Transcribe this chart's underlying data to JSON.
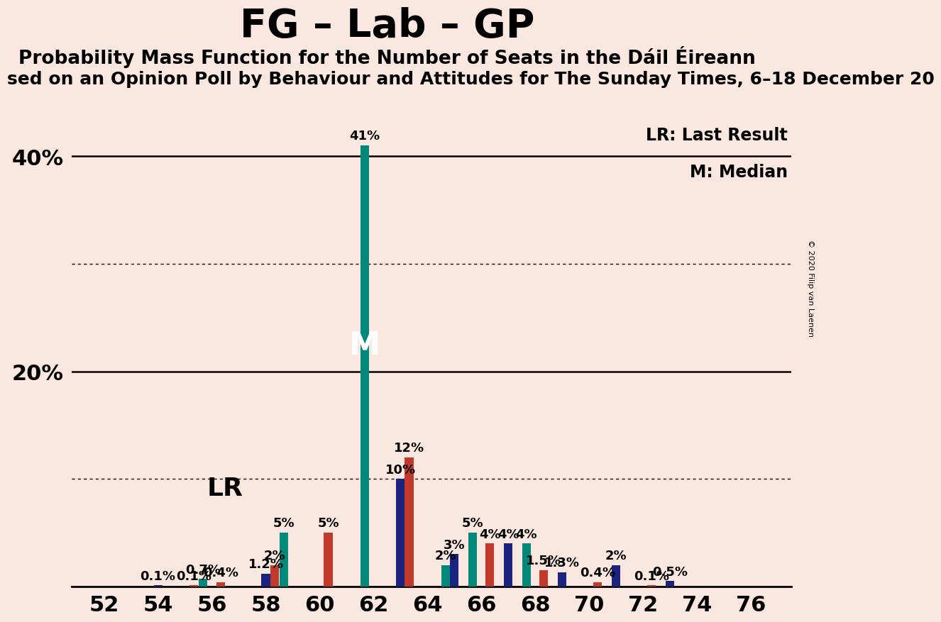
{
  "title": "FG – Lab – GP",
  "subtitle": "Probability Mass Function for the Number of Seats in the Dáil Éireann",
  "subtitle2": "sed on an Opinion Poll by Behaviour and Attitudes for The Sunday Times, 6–18 December 20",
  "copyright": "© 2020 Filip van Laenen",
  "background_color": "#FAE8E0",
  "seats": [
    52,
    53,
    54,
    55,
    56,
    57,
    58,
    59,
    60,
    61,
    62,
    63,
    64,
    65,
    66,
    67,
    68,
    69,
    70,
    71,
    72,
    73,
    74,
    75,
    76
  ],
  "teal_values": [
    0.0,
    0.0,
    0.0,
    0.0,
    0.7,
    0.0,
    0.0,
    5.0,
    0.0,
    0.0,
    41.0,
    0.0,
    0.0,
    2.0,
    5.0,
    0.0,
    4.0,
    0.0,
    0.0,
    0.0,
    0.0,
    0.0,
    0.0,
    0.0,
    0.0
  ],
  "navy_values": [
    0.0,
    0.0,
    0.1,
    0.0,
    0.0,
    0.0,
    1.2,
    0.0,
    0.0,
    0.0,
    0.0,
    10.0,
    0.0,
    3.0,
    0.0,
    4.0,
    0.0,
    1.3,
    0.0,
    2.0,
    0.0,
    0.5,
    0.0,
    0.0,
    0.0
  ],
  "red_values": [
    0.0,
    0.0,
    0.0,
    0.1,
    0.4,
    0.0,
    2.0,
    0.0,
    5.0,
    0.0,
    0.0,
    12.0,
    0.0,
    0.0,
    4.0,
    0.0,
    1.5,
    0.0,
    0.4,
    0.0,
    0.1,
    0.0,
    0.0,
    0.0,
    0.0
  ],
  "teal_color": "#00897B",
  "navy_color": "#1a237e",
  "red_color": "#c0392b",
  "yticks": [
    20,
    40
  ],
  "dotted_yticks": [
    10,
    30
  ],
  "ylim": [
    0,
    46
  ],
  "median_seat": 62,
  "lr_seat": 58,
  "legend_lr": "LR: Last Result",
  "legend_m": "M: Median",
  "bar_width": 0.32,
  "xtick_fontsize": 22,
  "ytick_fontsize": 22,
  "title_fontsize": 40,
  "subtitle_fontsize": 19,
  "subtitle2_fontsize": 18,
  "annotation_fontsize": 13,
  "lr_fontsize": 26,
  "m_fontsize": 32
}
